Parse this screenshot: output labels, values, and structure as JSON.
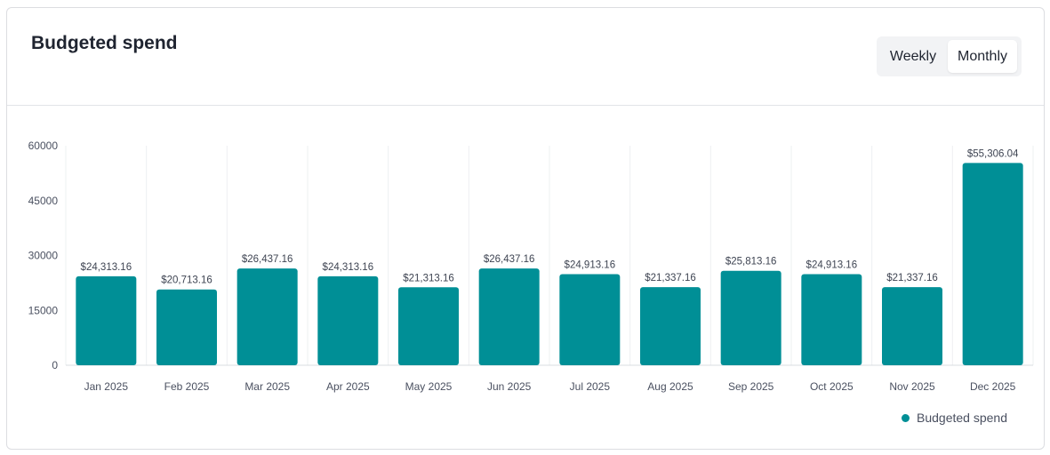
{
  "header": {
    "title": "Budgeted spend",
    "toggle": {
      "weekly_label": "Weekly",
      "monthly_label": "Monthly",
      "selected": "Monthly"
    }
  },
  "legend": {
    "label": "Budgeted spend"
  },
  "colors": {
    "bar": "#008f96",
    "grid": "#eef0f2",
    "axis": "#d9dce0"
  },
  "chart_data": {
    "type": "bar",
    "title": "Budgeted spend",
    "xlabel": "",
    "ylabel": "",
    "ylim": [
      0,
      60000
    ],
    "yticks": [
      0,
      15000,
      30000,
      45000,
      60000
    ],
    "grid": "vertical",
    "legend": "bottom-right",
    "categories": [
      "Jan 2025",
      "Feb 2025",
      "Mar 2025",
      "Apr 2025",
      "May 2025",
      "Jun 2025",
      "Jul 2025",
      "Aug 2025",
      "Sep 2025",
      "Oct 2025",
      "Nov 2025",
      "Dec 2025"
    ],
    "series": [
      {
        "name": "Budgeted spend",
        "values": [
          24313.16,
          20713.16,
          26437.16,
          24313.16,
          21313.16,
          26437.16,
          24913.16,
          21337.16,
          25813.16,
          24913.16,
          21337.16,
          55306.04
        ],
        "labels": [
          "$24,313.16",
          "$20,713.16",
          "$26,437.16",
          "$24,313.16",
          "$21,313.16",
          "$26,437.16",
          "$24,913.16",
          "$21,337.16",
          "$25,813.16",
          "$24,913.16",
          "$21,337.16",
          "$55,306.04"
        ]
      }
    ]
  }
}
